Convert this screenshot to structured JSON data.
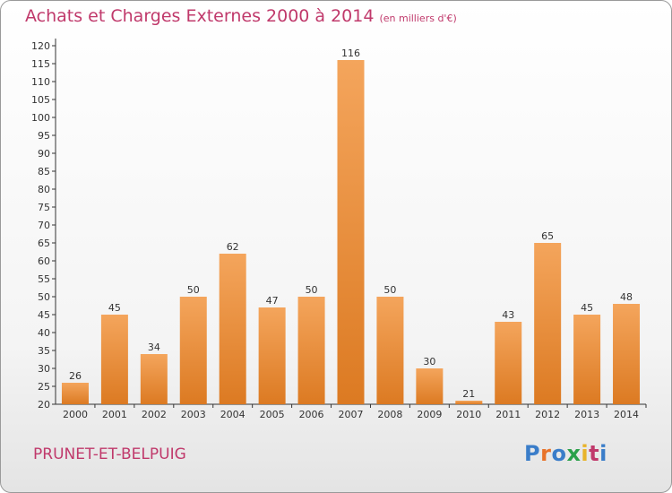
{
  "title": "Achats et Charges Externes 2000 à 2014",
  "subtitle": "(en milliers d'€)",
  "place": "PRUNET-ET-BELPUIG",
  "logo": {
    "letters": [
      "P",
      "r",
      "o",
      "x",
      "i",
      "t",
      "i"
    ],
    "colors": [
      "#3a7dc9",
      "#e8732a",
      "#3a7dc9",
      "#2aa14a",
      "#e8b32a",
      "#c0396b",
      "#3a7dc9"
    ]
  },
  "colors": {
    "bar_light": "#f4a55c",
    "bar_dark": "#dc7a22",
    "title": "#c0396b",
    "axis": "#333333"
  },
  "chart_data": {
    "type": "bar",
    "categories": [
      "2000",
      "2001",
      "2002",
      "2003",
      "2004",
      "2005",
      "2006",
      "2007",
      "2008",
      "2009",
      "2010",
      "2011",
      "2012",
      "2013",
      "2014"
    ],
    "values": [
      26,
      45,
      34,
      50,
      62,
      47,
      50,
      116,
      50,
      30,
      21,
      43,
      65,
      45,
      48
    ],
    "ylim": [
      20,
      120
    ],
    "ytick_step": 5,
    "grid": false,
    "xlabel": "",
    "ylabel": ""
  }
}
